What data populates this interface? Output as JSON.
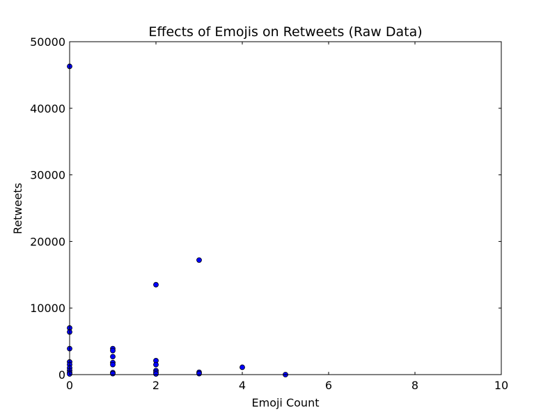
{
  "chart_data": {
    "type": "scatter",
    "title": "Effects of Emojis on Retweets (Raw Data)",
    "xlabel": "Emoji Count",
    "ylabel": "Retweets",
    "xlim": [
      0,
      10
    ],
    "ylim": [
      0,
      50000
    ],
    "xticks": [
      0,
      2,
      4,
      6,
      8,
      10
    ],
    "yticks": [
      0,
      10000,
      20000,
      30000,
      40000,
      50000
    ],
    "grid": false,
    "legend": "none",
    "marker_color": "#0000ff",
    "marker_edge_color": "#000000",
    "points": [
      {
        "x": 0,
        "y": 46300
      },
      {
        "x": 0,
        "y": 7000
      },
      {
        "x": 0,
        "y": 6400
      },
      {
        "x": 0,
        "y": 3900
      },
      {
        "x": 0,
        "y": 1900
      },
      {
        "x": 0,
        "y": 1500
      },
      {
        "x": 0,
        "y": 1000
      },
      {
        "x": 0,
        "y": 600
      },
      {
        "x": 0,
        "y": 300
      },
      {
        "x": 0,
        "y": 100
      },
      {
        "x": 1,
        "y": 3900
      },
      {
        "x": 1,
        "y": 3600
      },
      {
        "x": 1,
        "y": 2700
      },
      {
        "x": 1,
        "y": 1800
      },
      {
        "x": 1,
        "y": 1500
      },
      {
        "x": 1,
        "y": 300
      },
      {
        "x": 1,
        "y": 150
      },
      {
        "x": 2,
        "y": 13500
      },
      {
        "x": 2,
        "y": 2100
      },
      {
        "x": 2,
        "y": 1500
      },
      {
        "x": 2,
        "y": 600
      },
      {
        "x": 2,
        "y": 350
      },
      {
        "x": 2,
        "y": 100
      },
      {
        "x": 3,
        "y": 17200
      },
      {
        "x": 3,
        "y": 350
      },
      {
        "x": 3,
        "y": 150
      },
      {
        "x": 4,
        "y": 1100
      },
      {
        "x": 5,
        "y": 0
      }
    ]
  }
}
